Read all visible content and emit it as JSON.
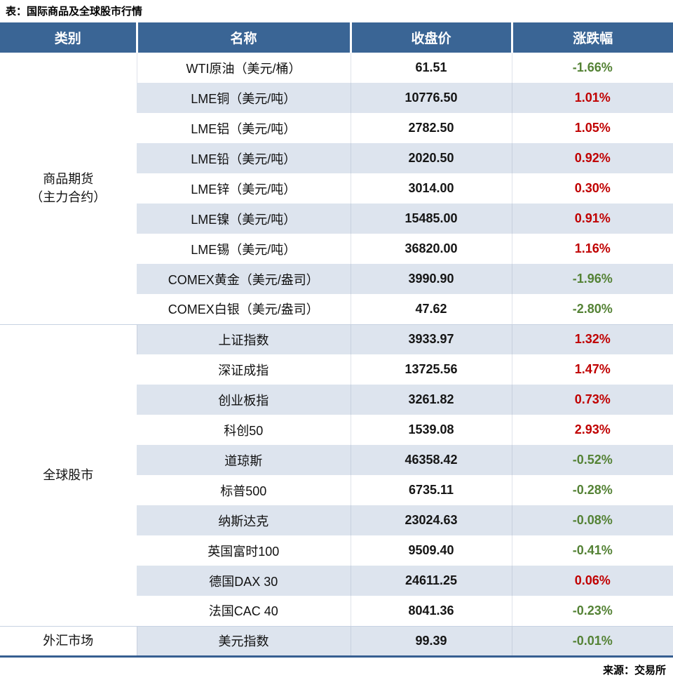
{
  "title": "表：国际商品及全球股市行情",
  "source": "来源：交易所",
  "colors": {
    "header_bg": "#3A6595",
    "stripe": "#DDE4EE",
    "up": "#C00000",
    "down": "#548235",
    "table_border": "#365F91",
    "section_line": "#C7D2E2"
  },
  "chart_data": {
    "type": "table",
    "title": "表：国际商品及全球股市行情",
    "source": "来源：交易所",
    "columns": [
      "类别",
      "名称",
      "收盘价",
      "涨跌幅"
    ],
    "layout_hints": {
      "stripe_pattern": "alternating white / light-blue rows",
      "change_color_rule": "positive = red (up), negative = green (down)"
    },
    "sections": [
      {
        "category_lines": [
          "商品期货",
          "（主力合约）"
        ],
        "rows": [
          {
            "name": "WTI原油（美元/桶）",
            "close": "61.51",
            "change": "-1.66%"
          },
          {
            "name": "LME铜（美元/吨）",
            "close": "10776.50",
            "change": "1.01%"
          },
          {
            "name": "LME铝（美元/吨）",
            "close": "2782.50",
            "change": "1.05%"
          },
          {
            "name": "LME铅（美元/吨）",
            "close": "2020.50",
            "change": "0.92%"
          },
          {
            "name": "LME锌（美元/吨）",
            "close": "3014.00",
            "change": "0.30%"
          },
          {
            "name": "LME镍（美元/吨）",
            "close": "15485.00",
            "change": "0.91%"
          },
          {
            "name": "LME锡（美元/吨）",
            "close": "36820.00",
            "change": "1.16%"
          },
          {
            "name": "COMEX黄金（美元/盎司）",
            "close": "3990.90",
            "change": "-1.96%"
          },
          {
            "name": "COMEX白银（美元/盎司）",
            "close": "47.62",
            "change": "-2.80%"
          }
        ]
      },
      {
        "category_lines": [
          "全球股市"
        ],
        "rows": [
          {
            "name": "上证指数",
            "close": "3933.97",
            "change": "1.32%"
          },
          {
            "name": "深证成指",
            "close": "13725.56",
            "change": "1.47%"
          },
          {
            "name": "创业板指",
            "close": "3261.82",
            "change": "0.73%"
          },
          {
            "name": "科创50",
            "close": "1539.08",
            "change": "2.93%"
          },
          {
            "name": "道琼斯",
            "close": "46358.42",
            "change": "-0.52%"
          },
          {
            "name": "标普500",
            "close": "6735.11",
            "change": "-0.28%"
          },
          {
            "name": "纳斯达克",
            "close": "23024.63",
            "change": "-0.08%"
          },
          {
            "name": "英国富时100",
            "close": "9509.40",
            "change": "-0.41%"
          },
          {
            "name": "德国DAX 30",
            "close": "24611.25",
            "change": "0.06%"
          },
          {
            "name": "法国CAC 40",
            "close": "8041.36",
            "change": "-0.23%"
          }
        ]
      },
      {
        "category_lines": [
          "外汇市场"
        ],
        "rows": [
          {
            "name": "美元指数",
            "close": "99.39",
            "change": "-0.01%"
          }
        ]
      }
    ]
  }
}
